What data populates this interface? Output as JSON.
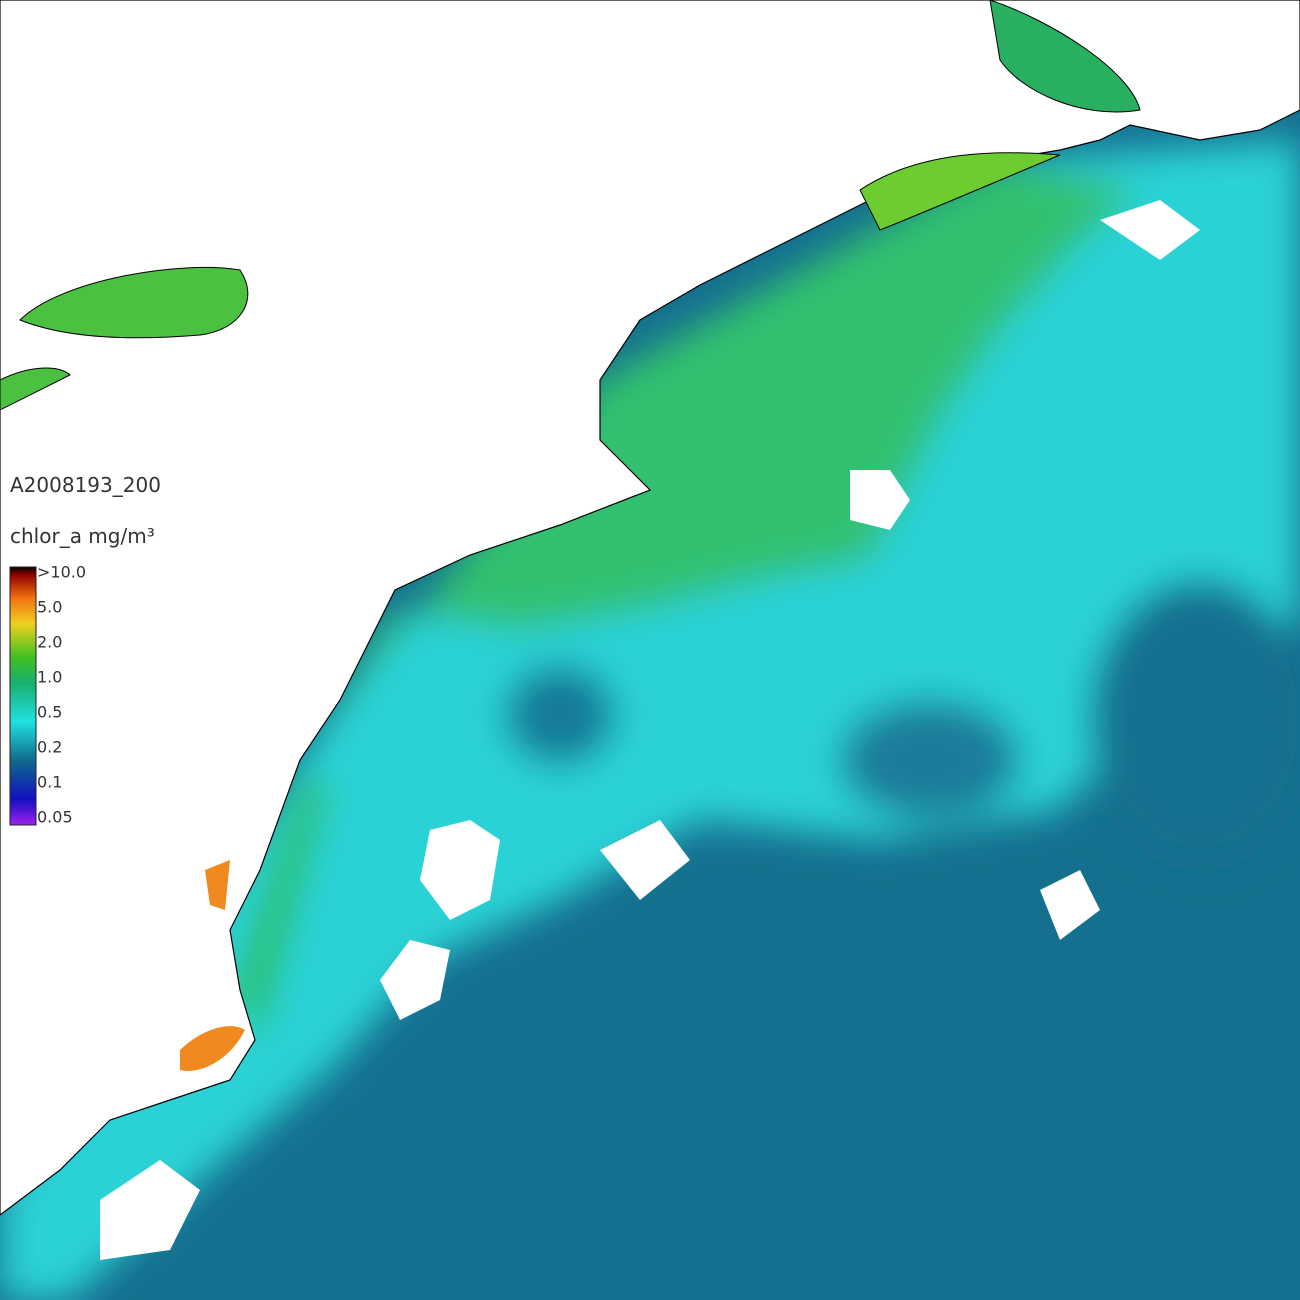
{
  "map": {
    "product_id": "A2008193_200",
    "legend": {
      "title": "chlor_a mg/m³",
      "labels": [
        ">10.0",
        "5.0",
        "2.0",
        "1.0",
        "0.5",
        "0.2",
        "0.1",
        "0.05"
      ]
    }
  }
}
